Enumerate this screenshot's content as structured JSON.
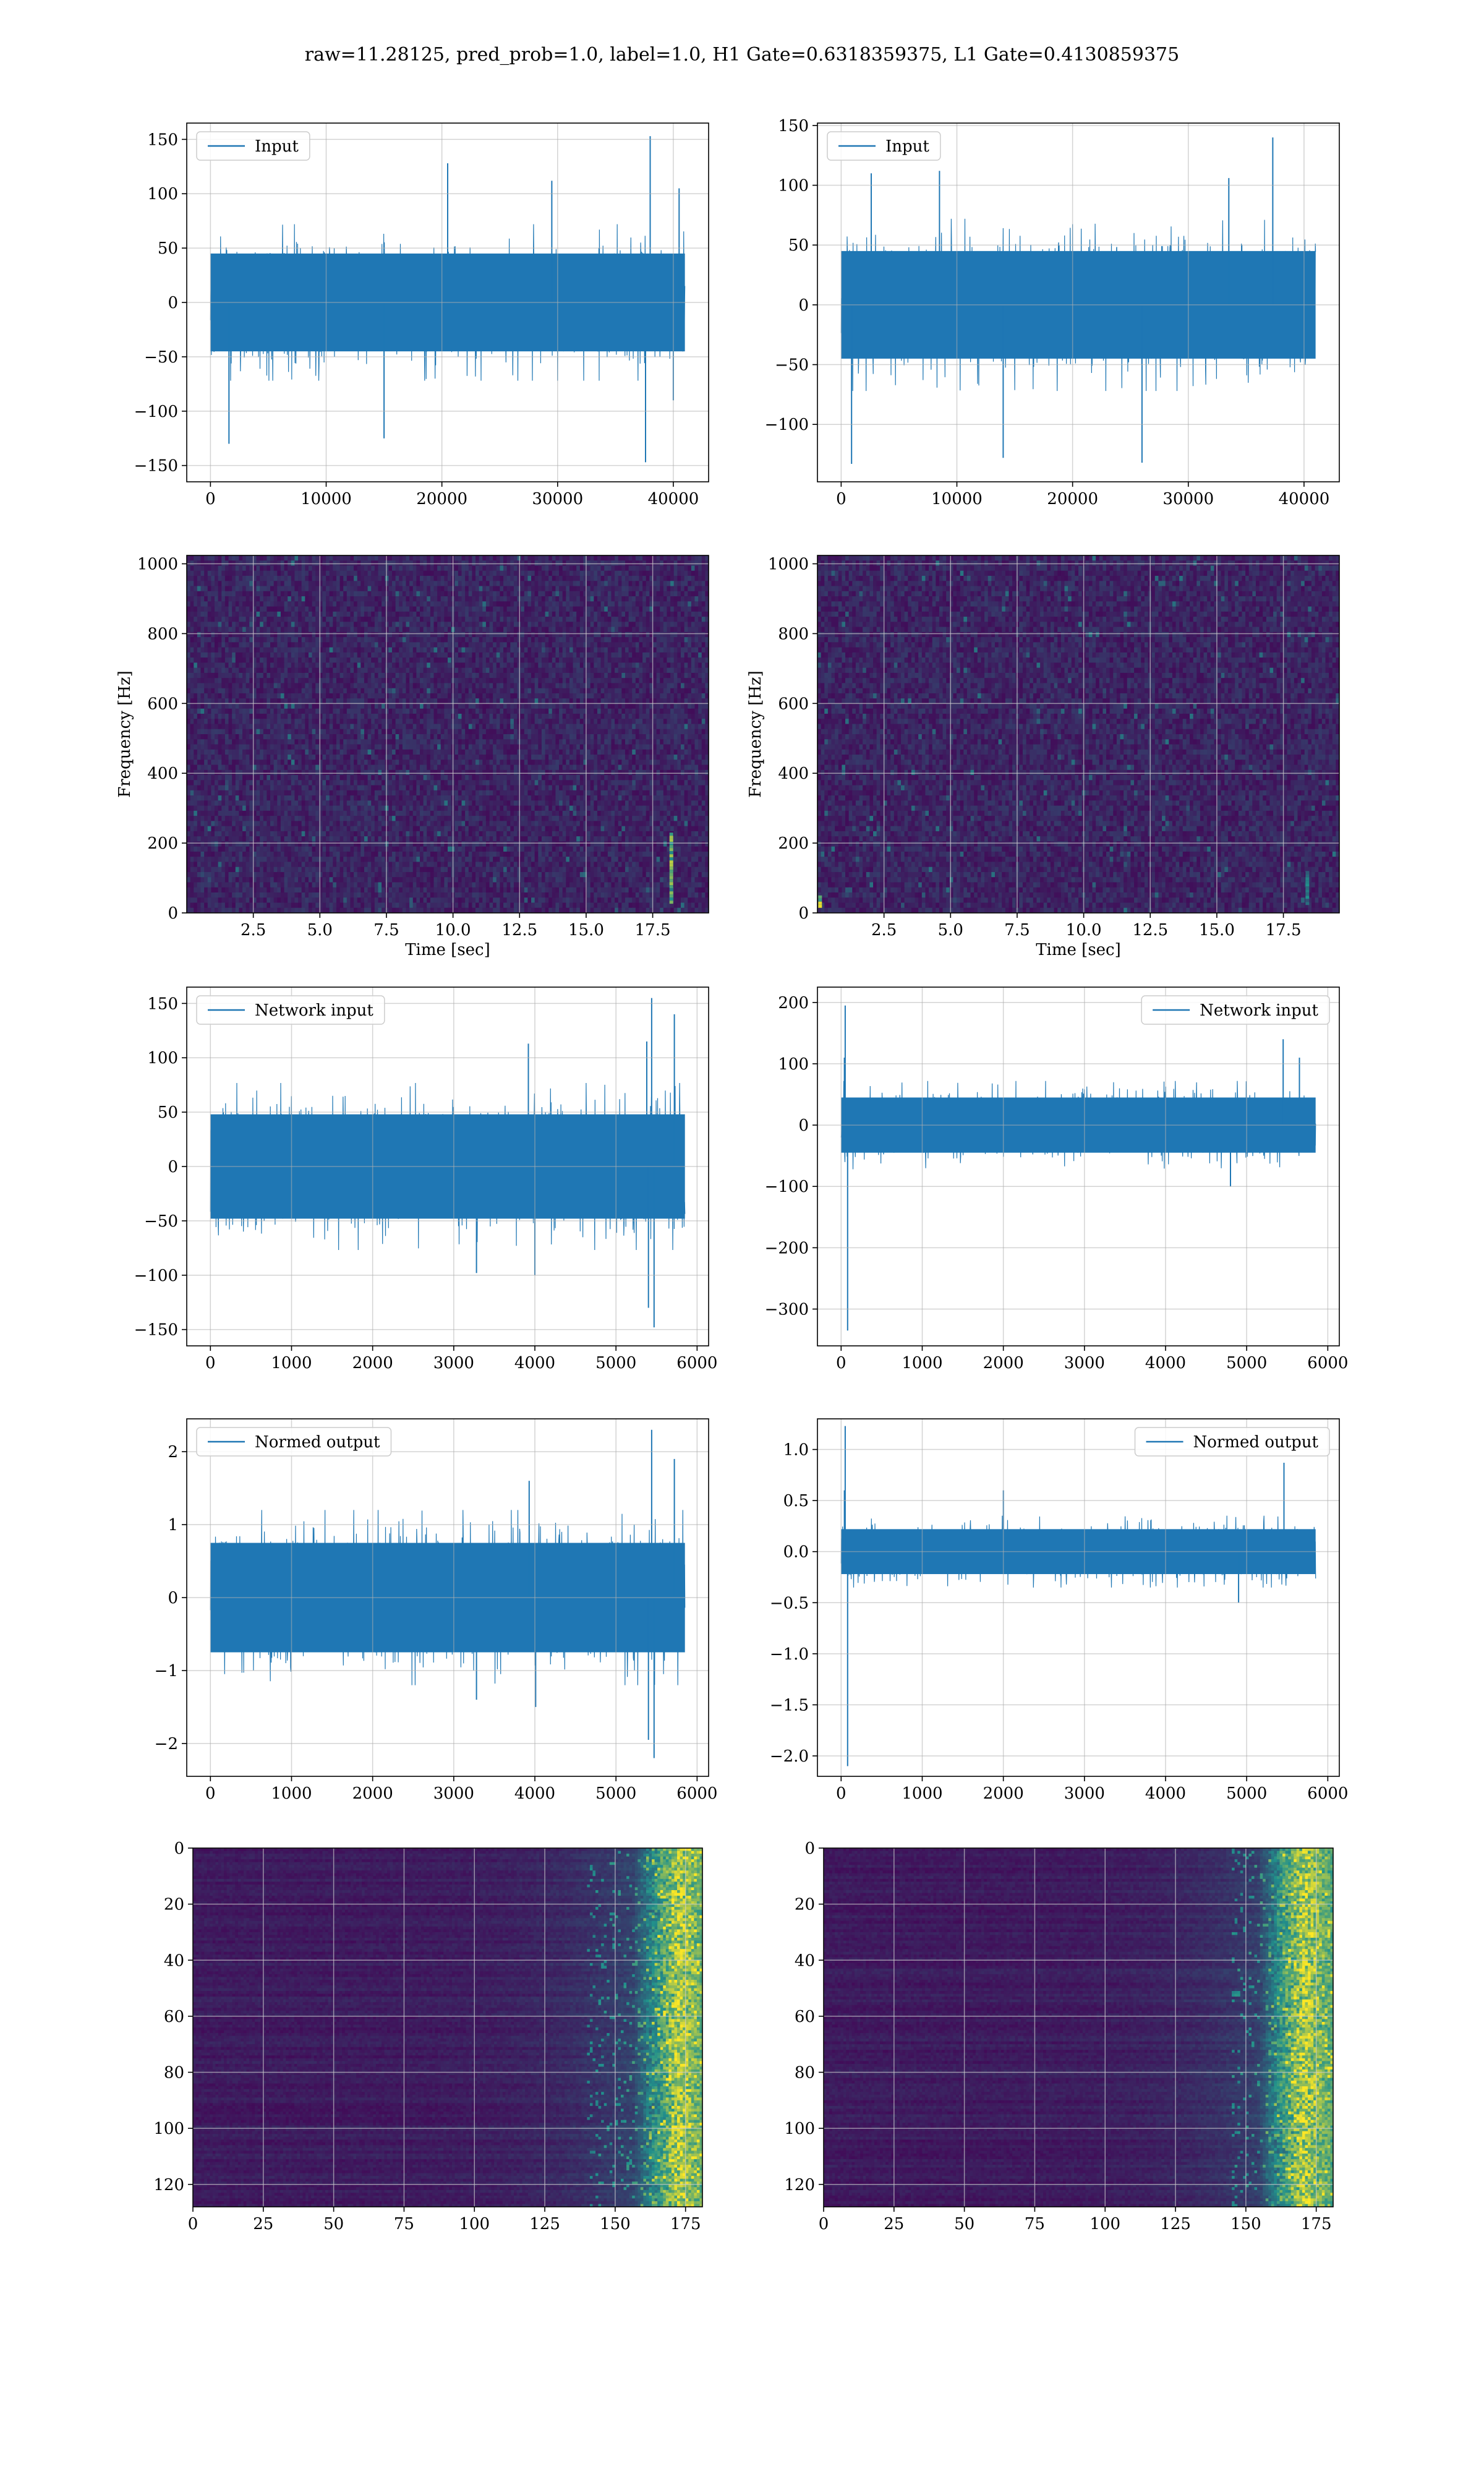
{
  "figure": {
    "suptitle": "raw=11.28125, pred_prob=1.0, label=1.0, H1 Gate=0.6318359375, L1 Gate=0.4130859375"
  },
  "colors": {
    "line": "#1f77b4",
    "grid": "#b0b0b0",
    "heatmap_low": "#440154",
    "heatmap_mid": "#21918c",
    "heatmap_high": "#fde725"
  },
  "chart_data": [
    {
      "id": "h1-input",
      "type": "line",
      "legend": "Input",
      "legend_loc": "upper left",
      "x": [
        0,
        41000
      ],
      "xlim": [
        -2050,
        43050
      ],
      "ylim": [
        -165,
        165
      ],
      "xticks": [
        0,
        10000,
        20000,
        30000,
        40000
      ],
      "xticklabels": [
        "0",
        "10000",
        "20000",
        "30000",
        "40000"
      ],
      "yticks": [
        -150,
        -100,
        -50,
        0,
        50,
        100,
        150
      ],
      "yticklabels": [
        "−150",
        "−100",
        "−50",
        "0",
        "50",
        "100",
        "150"
      ],
      "grid": true,
      "series": [
        {
          "band": [
            -45,
            45
          ],
          "peak_max": 153,
          "peak_min": -147
        }
      ],
      "spikes": [
        [
          38000,
          153
        ],
        [
          37600,
          -147
        ],
        [
          1600,
          -130
        ],
        [
          15000,
          -125
        ],
        [
          20500,
          128
        ],
        [
          29500,
          112
        ],
        [
          40500,
          105
        ],
        [
          40000,
          -90
        ]
      ]
    },
    {
      "id": "l1-input",
      "type": "line",
      "legend": "Input",
      "legend_loc": "upper left",
      "x": [
        0,
        41000
      ],
      "xlim": [
        -2050,
        43050
      ],
      "ylim": [
        -148,
        152
      ],
      "xticks": [
        0,
        10000,
        20000,
        30000,
        40000
      ],
      "xticklabels": [
        "0",
        "10000",
        "20000",
        "30000",
        "40000"
      ],
      "yticks": [
        -100,
        -50,
        0,
        50,
        100,
        150
      ],
      "yticklabels": [
        "−100",
        "−50",
        "0",
        "50",
        "100",
        "150"
      ],
      "grid": true,
      "series": [
        {
          "band": [
            -45,
            45
          ],
          "peak_max": 140,
          "peak_min": -133
        }
      ],
      "spikes": [
        [
          37300,
          140
        ],
        [
          900,
          -133
        ],
        [
          14000,
          -128
        ],
        [
          26000,
          -132
        ],
        [
          8500,
          112
        ],
        [
          33500,
          106
        ],
        [
          2600,
          110
        ]
      ]
    },
    {
      "id": "h1-spectrogram",
      "type": "heatmap",
      "xlabel": "Time [sec]",
      "ylabel": "Frequency [Hz]",
      "xlim": [
        0,
        19.6
      ],
      "ylim": [
        0,
        1024
      ],
      "xticks": [
        2.5,
        5.0,
        7.5,
        10.0,
        12.5,
        15.0,
        17.5
      ],
      "xticklabels": [
        "2.5",
        "5.0",
        "7.5",
        "10.0",
        "12.5",
        "15.0",
        "17.5"
      ],
      "yticks": [
        0,
        200,
        400,
        600,
        800,
        1000
      ],
      "yticklabels": [
        "0",
        "200",
        "400",
        "600",
        "800",
        "1000"
      ],
      "grid": true,
      "features": [
        {
          "t": 18.2,
          "fmin": 30,
          "fmax": 230,
          "intensity": 0.85
        }
      ]
    },
    {
      "id": "l1-spectrogram",
      "type": "heatmap",
      "xlabel": "Time [sec]",
      "ylabel": "Frequency [Hz]",
      "xlim": [
        0,
        19.6
      ],
      "ylim": [
        0,
        1024
      ],
      "xticks": [
        2.5,
        5.0,
        7.5,
        10.0,
        12.5,
        15.0,
        17.5
      ],
      "xticklabels": [
        "2.5",
        "5.0",
        "7.5",
        "10.0",
        "12.5",
        "15.0",
        "17.5"
      ],
      "yticks": [
        0,
        200,
        400,
        600,
        800,
        1000
      ],
      "yticklabels": [
        "0",
        "200",
        "400",
        "600",
        "800",
        "1000"
      ],
      "grid": true,
      "features": [
        {
          "t": 0.1,
          "fmin": 20,
          "fmax": 50,
          "intensity": 1.0
        },
        {
          "t": 18.4,
          "fmin": 30,
          "fmax": 120,
          "intensity": 0.5
        }
      ]
    },
    {
      "id": "h1-network-input",
      "type": "line",
      "legend": "Network input",
      "legend_loc": "upper left",
      "x": [
        0,
        5850
      ],
      "xlim": [
        -292,
        6142
      ],
      "ylim": [
        -165,
        165
      ],
      "xticks": [
        0,
        1000,
        2000,
        3000,
        4000,
        5000,
        6000
      ],
      "xticklabels": [
        "0",
        "1000",
        "2000",
        "3000",
        "4000",
        "5000",
        "6000"
      ],
      "yticks": [
        -150,
        -100,
        -50,
        0,
        50,
        100,
        150
      ],
      "yticklabels": [
        "−150",
        "−100",
        "−50",
        "0",
        "50",
        "100",
        "150"
      ],
      "grid": true,
      "series": [
        {
          "band": [
            -48,
            48
          ],
          "peak_max": 155,
          "peak_min": -148
        }
      ],
      "spikes": [
        [
          5440,
          155
        ],
        [
          5470,
          -148
        ],
        [
          5400,
          -130
        ],
        [
          5720,
          140
        ],
        [
          5380,
          115
        ],
        [
          3920,
          113
        ],
        [
          4000,
          -100
        ],
        [
          3280,
          -98
        ]
      ]
    },
    {
      "id": "l1-network-input",
      "type": "line",
      "legend": "Network input",
      "legend_loc": "upper right",
      "x": [
        0,
        5850
      ],
      "xlim": [
        -292,
        6142
      ],
      "ylim": [
        -360,
        225
      ],
      "xticks": [
        0,
        1000,
        2000,
        3000,
        4000,
        5000,
        6000
      ],
      "xticklabels": [
        "0",
        "1000",
        "2000",
        "3000",
        "4000",
        "5000",
        "6000"
      ],
      "yticks": [
        -300,
        -200,
        -100,
        0,
        100,
        200
      ],
      "yticklabels": [
        "−300",
        "−200",
        "−100",
        "0",
        "100",
        "200"
      ],
      "grid": true,
      "series": [
        {
          "band": [
            -45,
            45
          ],
          "peak_max": 195,
          "peak_min": -335
        }
      ],
      "spikes": [
        [
          50,
          195
        ],
        [
          80,
          -335
        ],
        [
          40,
          110
        ],
        [
          5450,
          140
        ],
        [
          5650,
          110
        ],
        [
          4800,
          -100
        ]
      ]
    },
    {
      "id": "h1-normed-output",
      "type": "line",
      "legend": "Normed output",
      "legend_loc": "upper left",
      "x": [
        0,
        5850
      ],
      "xlim": [
        -292,
        6142
      ],
      "ylim": [
        -2.45,
        2.45
      ],
      "xticks": [
        0,
        1000,
        2000,
        3000,
        4000,
        5000,
        6000
      ],
      "xticklabels": [
        "0",
        "1000",
        "2000",
        "3000",
        "4000",
        "5000",
        "6000"
      ],
      "yticks": [
        -2,
        -1,
        0,
        1,
        2
      ],
      "yticklabels": [
        "−2",
        "−1",
        "0",
        "1",
        "2"
      ],
      "grid": true,
      "series": [
        {
          "band": [
            -0.75,
            0.75
          ],
          "peak_max": 2.3,
          "peak_min": -2.2
        }
      ],
      "spikes": [
        [
          5440,
          2.3
        ],
        [
          5470,
          -2.2
        ],
        [
          5400,
          -1.95
        ],
        [
          5720,
          1.9
        ],
        [
          3930,
          1.6
        ],
        [
          4010,
          -1.5
        ],
        [
          3280,
          -1.4
        ]
      ]
    },
    {
      "id": "l1-normed-output",
      "type": "line",
      "legend": "Normed output",
      "legend_loc": "upper right",
      "x": [
        0,
        5850
      ],
      "xlim": [
        -292,
        6142
      ],
      "ylim": [
        -2.2,
        1.3
      ],
      "xticks": [
        0,
        1000,
        2000,
        3000,
        4000,
        5000,
        6000
      ],
      "xticklabels": [
        "0",
        "1000",
        "2000",
        "3000",
        "4000",
        "5000",
        "6000"
      ],
      "yticks": [
        -2.0,
        -1.5,
        -1.0,
        -0.5,
        0.0,
        0.5,
        1.0
      ],
      "yticklabels": [
        "−2.0",
        "−1.5",
        "−1.0",
        "−0.5",
        "0.0",
        "0.5",
        "1.0"
      ],
      "grid": true,
      "series": [
        {
          "band": [
            -0.22,
            0.22
          ],
          "peak_max": 1.23,
          "peak_min": -2.1
        }
      ],
      "spikes": [
        [
          50,
          1.23
        ],
        [
          80,
          -2.1
        ],
        [
          40,
          0.6
        ],
        [
          5460,
          0.87
        ],
        [
          4900,
          -0.5
        ],
        [
          2000,
          0.6
        ]
      ]
    },
    {
      "id": "h1-features",
      "type": "heatmap",
      "xlim": [
        0,
        181
      ],
      "ylim": [
        128,
        0
      ],
      "xticks": [
        0,
        25,
        50,
        75,
        100,
        125,
        150,
        175
      ],
      "xticklabels": [
        "0",
        "25",
        "50",
        "75",
        "100",
        "125",
        "150",
        "175"
      ],
      "yticks": [
        0,
        20,
        40,
        60,
        80,
        100,
        120
      ],
      "yticklabels": [
        "0",
        "20",
        "40",
        "60",
        "80",
        "100",
        "120"
      ],
      "grid": true,
      "features": [
        {
          "xmin": 140,
          "xmax": 181,
          "bright_x": 172,
          "intensity": 0.9
        }
      ]
    },
    {
      "id": "l1-features",
      "type": "heatmap",
      "xlim": [
        0,
        181
      ],
      "ylim": [
        128,
        0
      ],
      "xticks": [
        0,
        25,
        50,
        75,
        100,
        125,
        150,
        175
      ],
      "xticklabels": [
        "0",
        "25",
        "50",
        "75",
        "100",
        "125",
        "150",
        "175"
      ],
      "yticks": [
        0,
        20,
        40,
        60,
        80,
        100,
        120
      ],
      "yticklabels": [
        "0",
        "20",
        "40",
        "60",
        "80",
        "100",
        "120"
      ],
      "grid": true,
      "features": [
        {
          "xmin": 145,
          "xmax": 181,
          "bright_x": 170,
          "intensity": 0.95
        }
      ]
    }
  ]
}
